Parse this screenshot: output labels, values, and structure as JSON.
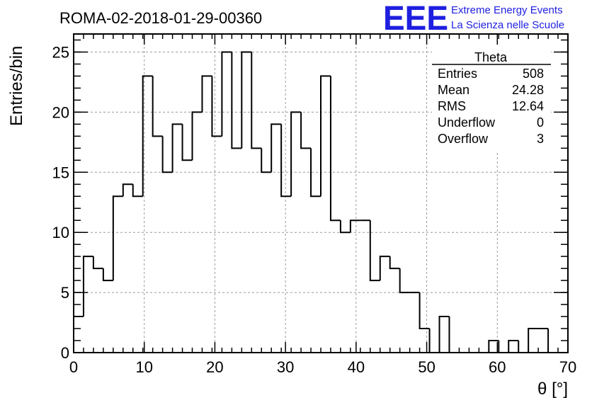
{
  "chart_data": {
    "type": "histogram",
    "title": "ROMA-02-2018-01-29-00360",
    "xlabel": "θ [°]",
    "ylabel": "Entries/bin",
    "xlim": [
      0,
      70
    ],
    "ylim": [
      0,
      26.5
    ],
    "grid": true,
    "bin_width": 1.4,
    "x_ticks": [
      0,
      10,
      20,
      30,
      40,
      50,
      60,
      70
    ],
    "y_ticks": [
      0,
      5,
      10,
      15,
      20,
      25
    ],
    "values": [
      3,
      8,
      7,
      6,
      13,
      14,
      13,
      23,
      18,
      15,
      19,
      16,
      20,
      23,
      18,
      25,
      17,
      25,
      17,
      15,
      19,
      13,
      20,
      17,
      13,
      23,
      11,
      10,
      11,
      11,
      6,
      8,
      7,
      5,
      5,
      2,
      0,
      3,
      0,
      0,
      0,
      0,
      1,
      0,
      1,
      0,
      2,
      2,
      0,
      0
    ],
    "stats_box": {
      "name": "Theta",
      "rows": [
        {
          "label": "Entries",
          "value": "508"
        },
        {
          "label": "Mean",
          "value": "24.28"
        },
        {
          "label": "RMS",
          "value": "12.64"
        },
        {
          "label": "Underflow",
          "value": "0"
        },
        {
          "label": "Overflow",
          "value": "3"
        }
      ]
    },
    "colors": {
      "line": "#000000",
      "grid": "#9a9a9a",
      "logo": "#1f1fe0"
    }
  },
  "logo": {
    "mark": "EEE",
    "line1": "Extreme Energy Events",
    "line2": "La Scienza nelle Scuole"
  }
}
